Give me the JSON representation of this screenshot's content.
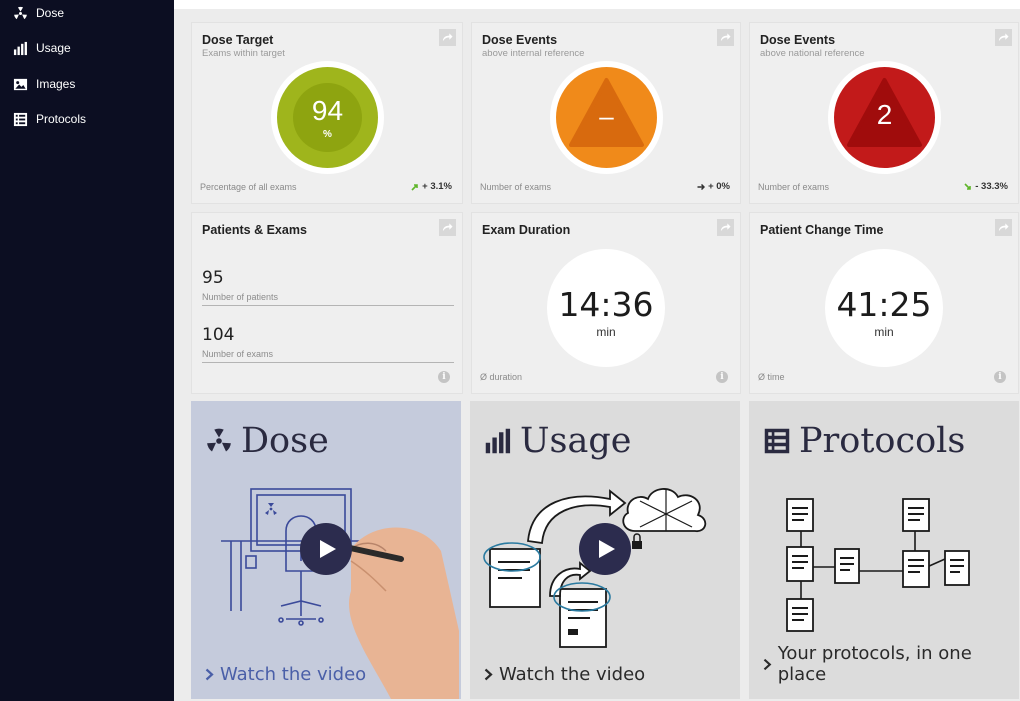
{
  "sidebar": {
    "items": [
      {
        "label": "Dose",
        "icon": "radiation-icon"
      },
      {
        "label": "Usage",
        "icon": "bar-chart-icon"
      },
      {
        "label": "Images",
        "icon": "images-icon"
      },
      {
        "label": "Protocols",
        "icon": "list-icon"
      }
    ]
  },
  "cards": {
    "dose_target": {
      "title": "Dose Target",
      "subtitle": "Exams within target",
      "value": "94",
      "unit": "%",
      "footer": "Percentage of all exams",
      "trend": "+ 3.1%",
      "trend_direction": "up",
      "color": "#9fb51c"
    },
    "dose_events_internal": {
      "title": "Dose Events",
      "subtitle": "above internal reference",
      "value": "–",
      "footer": "Number of exams",
      "trend": "+ 0%",
      "trend_direction": "flat",
      "color": "#f08a1a"
    },
    "dose_events_national": {
      "title": "Dose Events",
      "subtitle": "above national reference",
      "value": "2",
      "footer": "Number of exams",
      "trend": "- 33.3%",
      "trend_direction": "down",
      "color": "#c21a1a"
    },
    "patients_exams": {
      "title": "Patients & Exams",
      "patients_value": "95",
      "patients_label": "Number of patients",
      "exams_value": "104",
      "exams_label": "Number of exams"
    },
    "exam_duration": {
      "title": "Exam Duration",
      "value": "14:36",
      "unit": "min",
      "footer": "Ø duration"
    },
    "patient_change_time": {
      "title": "Patient Change Time",
      "value": "41:25",
      "unit": "min",
      "footer": "Ø time"
    }
  },
  "tiles": [
    {
      "title": "Dose",
      "link": "Watch the video",
      "bg": "#c5cbdc",
      "link_color": "#4a5fa8"
    },
    {
      "title": "Usage",
      "link": "Watch the video",
      "bg": "#dcdcdc",
      "link_color": "#2a2a2a"
    },
    {
      "title": "Protocols",
      "link": "Your protocols, in one place",
      "bg": "#dcdcdc",
      "link_color": "#2a2a2a"
    }
  ],
  "colors": {
    "sidebar_bg": "#0c0e22",
    "play_button": "#2c2c4e"
  }
}
